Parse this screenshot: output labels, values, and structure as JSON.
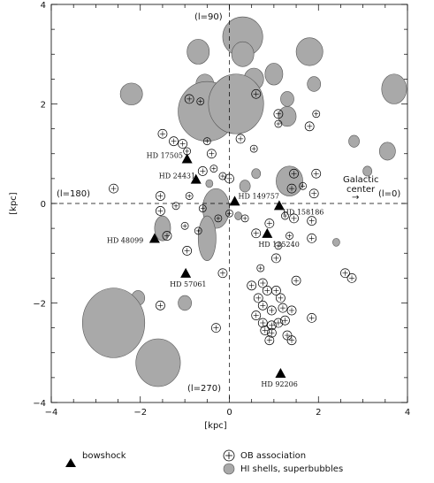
{
  "chart_data": {
    "type": "scatter",
    "title": "",
    "xlabel": "[kpc]",
    "ylabel": "[kpc]",
    "xlim": [
      -4,
      4
    ],
    "ylim": [
      -4,
      4
    ],
    "xticks": [
      -4,
      -2,
      0,
      2,
      4
    ],
    "yticks": [
      -4,
      -2,
      0,
      2,
      4
    ],
    "grid": false,
    "reference_lines": "dashed lines at x=0 and y=0",
    "direction_labels": {
      "top": "(l=90)",
      "bottom": "(l=270)",
      "left": "(l=180)",
      "right": "(l=0)",
      "center_note": "Galactic\ncenter",
      "arrow": "→"
    },
    "legend": {
      "placement": "bottom",
      "items": [
        {
          "marker": "triangle",
          "label": "bowshock"
        },
        {
          "marker": "circle-plus",
          "label": "OB association"
        },
        {
          "marker": "gray-disc",
          "label": "HI shells, superbubbles"
        }
      ]
    },
    "colors": {
      "shell_fill": "#a9a9a9",
      "shell_edge": "#555555",
      "marker": "#000000"
    },
    "bowshocks": [
      {
        "name": "HD 17505",
        "x": -0.95,
        "y": 0.88
      },
      {
        "name": "HD 24431",
        "x": -0.75,
        "y": 0.47
      },
      {
        "name": "HD 149757",
        "x": 0.12,
        "y": 0.03
      },
      {
        "name": "HD 158186",
        "x": 1.12,
        "y": -0.06
      },
      {
        "name": "HD 48099",
        "x": -1.68,
        "y": -0.72
      },
      {
        "name": "HD 135240",
        "x": 0.85,
        "y": -0.62
      },
      {
        "name": "HD 57061",
        "x": -0.98,
        "y": -1.42
      },
      {
        "name": "HD 92206",
        "x": 1.15,
        "y": -3.43
      }
    ],
    "hi_shells": [
      {
        "x": 0.3,
        "y": 3.35,
        "rx": 0.45,
        "ry": 0.4
      },
      {
        "x": 0.3,
        "y": 3.0,
        "rx": 0.25,
        "ry": 0.25
      },
      {
        "x": -0.7,
        "y": 3.05,
        "rx": 0.25,
        "ry": 0.25
      },
      {
        "x": -0.55,
        "y": 2.4,
        "rx": 0.2,
        "ry": 0.2
      },
      {
        "x": 0.55,
        "y": 2.5,
        "rx": 0.22,
        "ry": 0.22
      },
      {
        "x": -2.2,
        "y": 2.2,
        "rx": 0.25,
        "ry": 0.22
      },
      {
        "x": -0.5,
        "y": 1.85,
        "rx": 0.65,
        "ry": 0.6
      },
      {
        "x": 0.15,
        "y": 2.0,
        "rx": 0.62,
        "ry": 0.6
      },
      {
        "x": 1.0,
        "y": 2.6,
        "rx": 0.2,
        "ry": 0.22
      },
      {
        "x": 1.8,
        "y": 3.05,
        "rx": 0.3,
        "ry": 0.28
      },
      {
        "x": 3.7,
        "y": 2.3,
        "rx": 0.28,
        "ry": 0.3
      },
      {
        "x": 1.9,
        "y": 2.4,
        "rx": 0.15,
        "ry": 0.15
      },
      {
        "x": 1.3,
        "y": 1.75,
        "rx": 0.2,
        "ry": 0.2
      },
      {
        "x": 1.3,
        "y": 2.1,
        "rx": 0.15,
        "ry": 0.15
      },
      {
        "x": 3.55,
        "y": 1.05,
        "rx": 0.18,
        "ry": 0.18
      },
      {
        "x": 2.8,
        "y": 1.25,
        "rx": 0.12,
        "ry": 0.12
      },
      {
        "x": 1.35,
        "y": 0.45,
        "rx": 0.3,
        "ry": 0.3
      },
      {
        "x": 3.1,
        "y": 0.65,
        "rx": 0.1,
        "ry": 0.1
      },
      {
        "x": 0.6,
        "y": 0.6,
        "rx": 0.1,
        "ry": 0.1
      },
      {
        "x": 0.35,
        "y": 0.35,
        "rx": 0.12,
        "ry": 0.12
      },
      {
        "x": -0.3,
        "y": -0.1,
        "rx": 0.3,
        "ry": 0.4
      },
      {
        "x": -0.5,
        "y": -0.7,
        "rx": 0.2,
        "ry": 0.45
      },
      {
        "x": -1.5,
        "y": -0.5,
        "rx": 0.18,
        "ry": 0.25
      },
      {
        "x": 0.2,
        "y": -0.25,
        "rx": 0.08,
        "ry": 0.08
      },
      {
        "x": 2.4,
        "y": -0.78,
        "rx": 0.08,
        "ry": 0.08
      },
      {
        "x": -2.05,
        "y": -1.9,
        "rx": 0.15,
        "ry": 0.15
      },
      {
        "x": -1.0,
        "y": -2.0,
        "rx": 0.15,
        "ry": 0.15
      },
      {
        "x": -2.6,
        "y": -2.4,
        "rx": 0.7,
        "ry": 0.7
      },
      {
        "x": -1.6,
        "y": -3.2,
        "rx": 0.5,
        "ry": 0.48
      },
      {
        "x": -0.45,
        "y": 0.4,
        "rx": 0.08,
        "ry": 0.08
      }
    ],
    "ob_associations": [
      {
        "x": 0.6,
        "y": 2.2,
        "r": 0.1
      },
      {
        "x": -0.9,
        "y": 2.1,
        "r": 0.1
      },
      {
        "x": -0.65,
        "y": 2.05,
        "r": 0.08
      },
      {
        "x": 1.1,
        "y": 1.8,
        "r": 0.1
      },
      {
        "x": 1.1,
        "y": 1.6,
        "r": 0.08
      },
      {
        "x": 1.8,
        "y": 1.55,
        "r": 0.1
      },
      {
        "x": 1.95,
        "y": 1.8,
        "r": 0.08
      },
      {
        "x": 0.25,
        "y": 1.3,
        "r": 0.1
      },
      {
        "x": 0.55,
        "y": 1.1,
        "r": 0.08
      },
      {
        "x": -1.5,
        "y": 1.4,
        "r": 0.1
      },
      {
        "x": -1.25,
        "y": 1.25,
        "r": 0.1
      },
      {
        "x": -1.05,
        "y": 1.2,
        "r": 0.1
      },
      {
        "x": -0.95,
        "y": 1.05,
        "r": 0.08
      },
      {
        "x": -0.5,
        "y": 1.25,
        "r": 0.08
      },
      {
        "x": -0.4,
        "y": 1.0,
        "r": 0.1
      },
      {
        "x": -0.6,
        "y": 0.65,
        "r": 0.1
      },
      {
        "x": -0.35,
        "y": 0.7,
        "r": 0.08
      },
      {
        "x": -0.15,
        "y": 0.55,
        "r": 0.08
      },
      {
        "x": 0.0,
        "y": 0.5,
        "r": 0.1
      },
      {
        "x": 1.45,
        "y": 0.6,
        "r": 0.1
      },
      {
        "x": 1.95,
        "y": 0.6,
        "r": 0.1
      },
      {
        "x": 1.4,
        "y": 0.3,
        "r": 0.1
      },
      {
        "x": 1.65,
        "y": 0.35,
        "r": 0.08
      },
      {
        "x": 1.9,
        "y": 0.2,
        "r": 0.1
      },
      {
        "x": -2.6,
        "y": 0.3,
        "r": 0.1
      },
      {
        "x": -1.55,
        "y": 0.15,
        "r": 0.1
      },
      {
        "x": -1.2,
        "y": -0.05,
        "r": 0.08
      },
      {
        "x": -1.55,
        "y": -0.15,
        "r": 0.1
      },
      {
        "x": -0.9,
        "y": 0.15,
        "r": 0.08
      },
      {
        "x": -1.0,
        "y": -0.45,
        "r": 0.08
      },
      {
        "x": -0.6,
        "y": -0.1,
        "r": 0.08
      },
      {
        "x": -0.25,
        "y": -0.3,
        "r": 0.08
      },
      {
        "x": 0.0,
        "y": -0.2,
        "r": 0.08
      },
      {
        "x": 0.35,
        "y": -0.3,
        "r": 0.08
      },
      {
        "x": 0.9,
        "y": -0.4,
        "r": 0.1
      },
      {
        "x": 1.25,
        "y": -0.25,
        "r": 0.08
      },
      {
        "x": 1.45,
        "y": -0.3,
        "r": 0.1
      },
      {
        "x": 1.85,
        "y": -0.35,
        "r": 0.1
      },
      {
        "x": 1.85,
        "y": -0.7,
        "r": 0.1
      },
      {
        "x": 1.35,
        "y": -0.65,
        "r": 0.08
      },
      {
        "x": -1.4,
        "y": -0.65,
        "r": 0.1
      },
      {
        "x": -0.7,
        "y": -0.55,
        "r": 0.08
      },
      {
        "x": 0.6,
        "y": -0.6,
        "r": 0.1
      },
      {
        "x": 1.1,
        "y": -0.85,
        "r": 0.08
      },
      {
        "x": 1.05,
        "y": -1.1,
        "r": 0.1
      },
      {
        "x": 0.7,
        "y": -1.3,
        "r": 0.08
      },
      {
        "x": -0.15,
        "y": -1.4,
        "r": 0.1
      },
      {
        "x": -0.95,
        "y": -0.95,
        "r": 0.1
      },
      {
        "x": 0.75,
        "y": -1.6,
        "r": 0.1
      },
      {
        "x": 0.85,
        "y": -1.75,
        "r": 0.1
      },
      {
        "x": 1.05,
        "y": -1.75,
        "r": 0.1
      },
      {
        "x": 1.15,
        "y": -1.9,
        "r": 0.1
      },
      {
        "x": 0.65,
        "y": -1.9,
        "r": 0.1
      },
      {
        "x": 0.75,
        "y": -2.05,
        "r": 0.1
      },
      {
        "x": 0.95,
        "y": -2.15,
        "r": 0.1
      },
      {
        "x": 1.2,
        "y": -2.1,
        "r": 0.1
      },
      {
        "x": 1.4,
        "y": -2.15,
        "r": 0.1
      },
      {
        "x": 0.6,
        "y": -2.25,
        "r": 0.1
      },
      {
        "x": 0.75,
        "y": -2.4,
        "r": 0.1
      },
      {
        "x": 0.95,
        "y": -2.45,
        "r": 0.1
      },
      {
        "x": 1.1,
        "y": -2.4,
        "r": 0.1
      },
      {
        "x": 1.25,
        "y": -2.35,
        "r": 0.1
      },
      {
        "x": 0.8,
        "y": -2.55,
        "r": 0.1
      },
      {
        "x": 0.95,
        "y": -2.6,
        "r": 0.1
      },
      {
        "x": 0.9,
        "y": -2.75,
        "r": 0.1
      },
      {
        "x": 1.3,
        "y": -2.65,
        "r": 0.1
      },
      {
        "x": 1.4,
        "y": -2.75,
        "r": 0.1
      },
      {
        "x": 2.6,
        "y": -1.4,
        "r": 0.1
      },
      {
        "x": 2.75,
        "y": -1.5,
        "r": 0.1
      },
      {
        "x": 1.5,
        "y": -1.55,
        "r": 0.1
      },
      {
        "x": 1.85,
        "y": -2.3,
        "r": 0.1
      },
      {
        "x": -1.55,
        "y": -2.05,
        "r": 0.1
      },
      {
        "x": -0.3,
        "y": -2.5,
        "r": 0.1
      },
      {
        "x": 0.5,
        "y": -1.65,
        "r": 0.1
      }
    ]
  }
}
